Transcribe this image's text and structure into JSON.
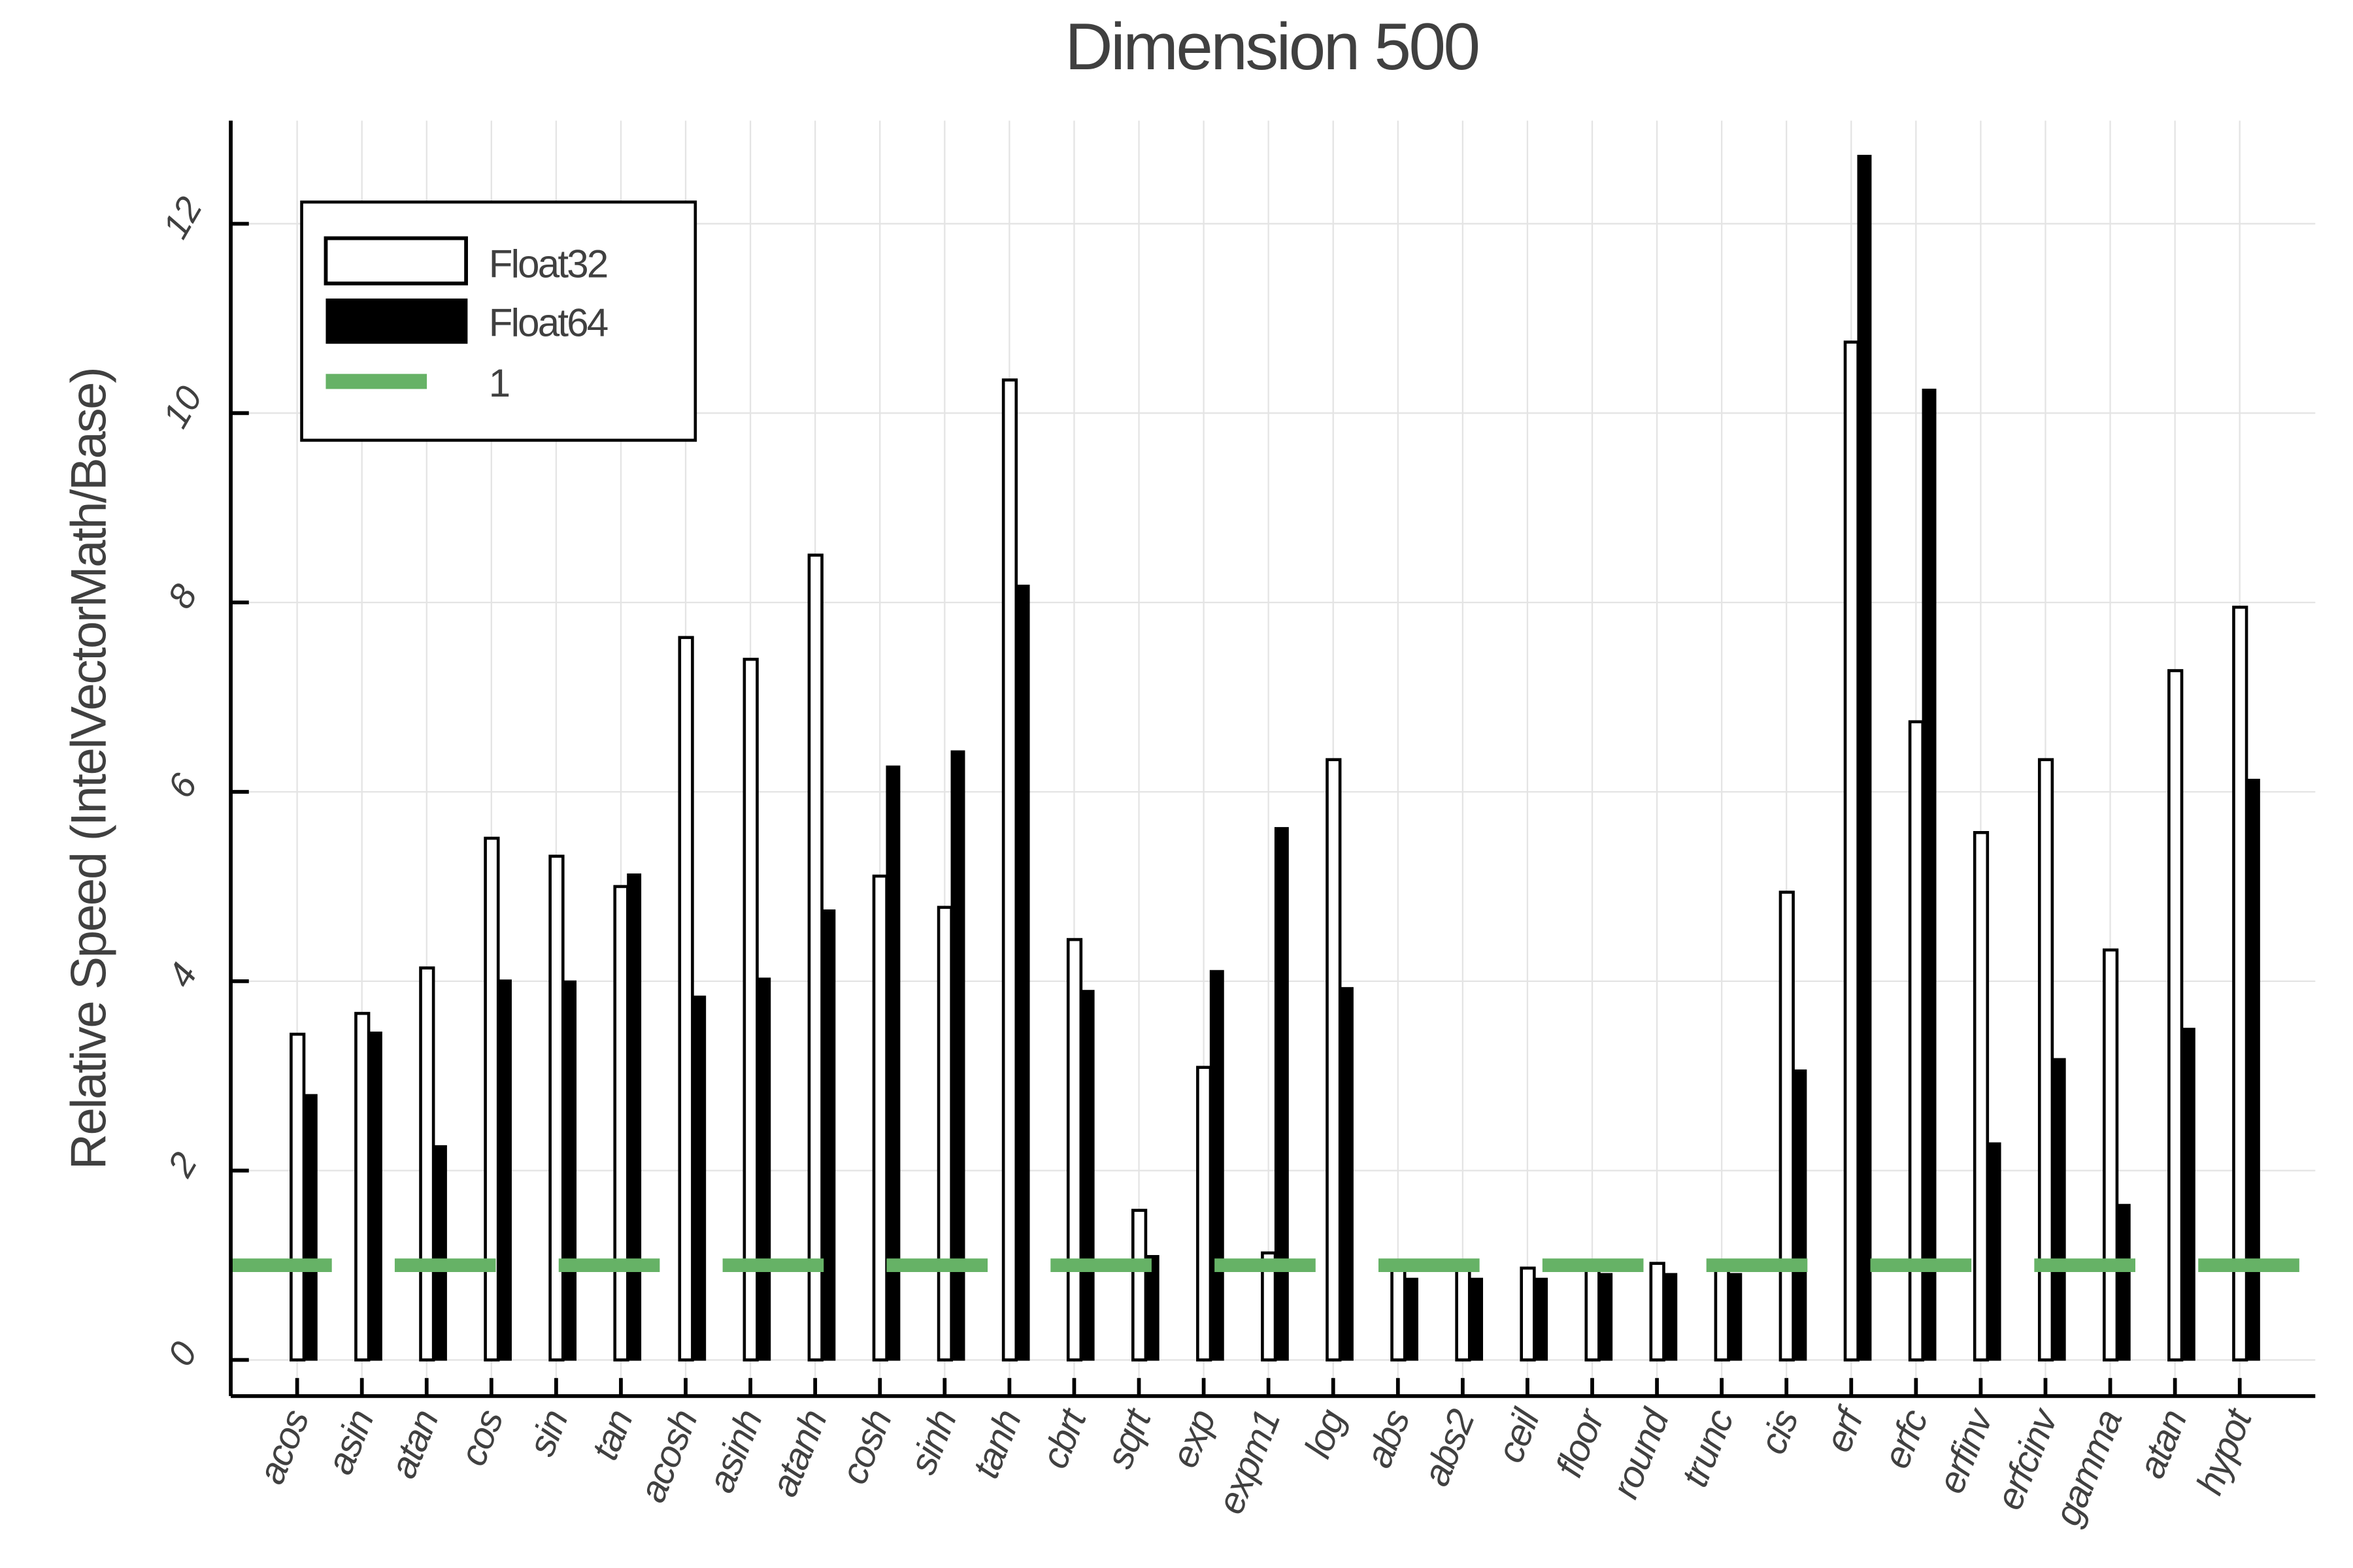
{
  "chart_data": {
    "type": "bar",
    "title": "Dimension 500",
    "xlabel": "",
    "ylabel": "Relative Speed (IntelVectorMath/Base)",
    "ylim": [
      -0.4,
      13.1
    ],
    "yticks": [
      0,
      2,
      4,
      6,
      8,
      10,
      12
    ],
    "grid": true,
    "legend_position": "top-left",
    "categories": [
      "acos",
      "asin",
      "atan",
      "cos",
      "sin",
      "tan",
      "acosh",
      "asinh",
      "atanh",
      "cosh",
      "sinh",
      "tanh",
      "cbrt",
      "sqrt",
      "exp",
      "expm1",
      "log",
      "abs",
      "abs2",
      "ceil",
      "floor",
      "round",
      "trunc",
      "cis",
      "erf",
      "erfc",
      "erfinv",
      "erfcinv",
      "gamma",
      "atan",
      "hypot"
    ],
    "series": [
      {
        "name": "Float32",
        "color": "#ffffff",
        "edge": "#000000",
        "values": [
          3.44,
          3.66,
          4.14,
          5.51,
          5.32,
          5.0,
          7.63,
          7.4,
          8.5,
          5.11,
          4.78,
          10.35,
          4.44,
          1.58,
          3.09,
          1.13,
          6.34,
          1.0,
          0.97,
          0.97,
          1.0,
          1.02,
          1.02,
          4.94,
          10.75,
          6.74,
          5.57,
          6.34,
          4.33,
          7.28,
          7.95
        ]
      },
      {
        "name": "Float64",
        "color": "#000000",
        "edge": "#000000",
        "values": [
          2.8,
          3.46,
          2.26,
          4.01,
          4.0,
          5.13,
          3.84,
          4.03,
          4.75,
          6.27,
          6.43,
          8.18,
          3.9,
          1.1,
          4.11,
          5.62,
          3.93,
          0.86,
          0.86,
          0.86,
          0.91,
          0.91,
          0.91,
          3.06,
          12.72,
          10.25,
          2.29,
          3.18,
          1.64,
          3.5,
          6.13
        ]
      }
    ],
    "reference_line": {
      "name": "1",
      "value": 1,
      "color": "#66b266",
      "style": "dashed"
    }
  }
}
